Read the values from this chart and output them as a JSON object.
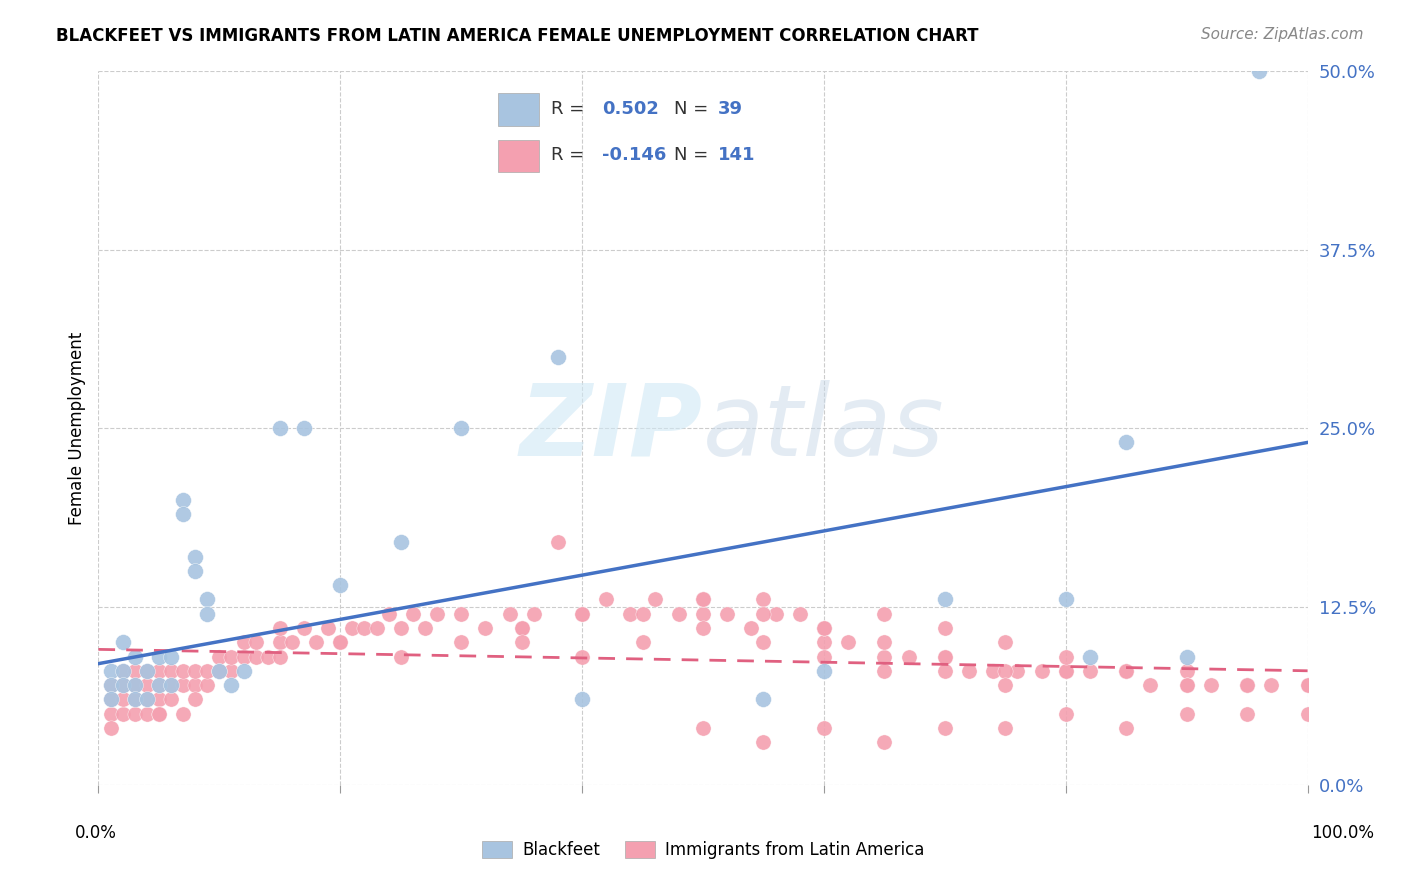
{
  "title": "BLACKFEET VS IMMIGRANTS FROM LATIN AMERICA FEMALE UNEMPLOYMENT CORRELATION CHART",
  "source": "Source: ZipAtlas.com",
  "ylabel": "Female Unemployment",
  "ytick_vals": [
    0.0,
    12.5,
    25.0,
    37.5,
    50.0
  ],
  "xlim": [
    0,
    100
  ],
  "ylim": [
    0,
    50
  ],
  "color_blackfeet": "#A8C4E0",
  "color_latin": "#F4A0B0",
  "color_line_blackfeet": "#4472C4",
  "color_line_latin": "#E06080",
  "watermark_zip": "ZIP",
  "watermark_atlas": "atlas",
  "blackfeet_x": [
    1,
    1,
    1,
    2,
    2,
    2,
    3,
    3,
    3,
    4,
    4,
    5,
    5,
    6,
    6,
    7,
    7,
    8,
    8,
    9,
    9,
    10,
    11,
    12,
    15,
    17,
    20,
    25,
    30,
    38,
    40,
    55,
    60,
    70,
    80,
    82,
    85,
    90,
    96
  ],
  "blackfeet_y": [
    8,
    7,
    6,
    10,
    8,
    7,
    9,
    7,
    6,
    8,
    6,
    9,
    7,
    9,
    7,
    20,
    19,
    16,
    15,
    13,
    12,
    8,
    7,
    8,
    25,
    25,
    14,
    17,
    25,
    30,
    6,
    6,
    8,
    13,
    13,
    9,
    24,
    9,
    50
  ],
  "latin_x": [
    1,
    1,
    1,
    1,
    2,
    2,
    2,
    2,
    3,
    3,
    3,
    3,
    4,
    4,
    4,
    4,
    5,
    5,
    5,
    5,
    6,
    6,
    6,
    7,
    7,
    7,
    8,
    8,
    8,
    9,
    9,
    10,
    10,
    11,
    11,
    12,
    12,
    13,
    13,
    14,
    15,
    15,
    16,
    17,
    18,
    19,
    20,
    21,
    22,
    23,
    24,
    25,
    26,
    27,
    28,
    30,
    32,
    34,
    35,
    36,
    38,
    40,
    42,
    44,
    46,
    48,
    50,
    50,
    52,
    54,
    56,
    58,
    60,
    60,
    62,
    65,
    67,
    70,
    72,
    74,
    76,
    78,
    80,
    82,
    85,
    87,
    90,
    92,
    95,
    97,
    100,
    35,
    40,
    45,
    50,
    55,
    60,
    65,
    70,
    75,
    80,
    85,
    90,
    95,
    5,
    10,
    15,
    20,
    25,
    30,
    35,
    40,
    45,
    50,
    55,
    60,
    65,
    70,
    75,
    50,
    55,
    60,
    65,
    70,
    75,
    80,
    85,
    90,
    95,
    100,
    50,
    55,
    60,
    65,
    70,
    75,
    80,
    85,
    90,
    95,
    100
  ],
  "latin_y": [
    5,
    4,
    6,
    7,
    5,
    6,
    7,
    8,
    6,
    7,
    8,
    5,
    5,
    6,
    7,
    8,
    6,
    7,
    5,
    8,
    7,
    8,
    6,
    5,
    7,
    8,
    7,
    6,
    8,
    7,
    8,
    8,
    9,
    8,
    9,
    9,
    10,
    9,
    10,
    9,
    10,
    11,
    10,
    11,
    10,
    11,
    10,
    11,
    11,
    11,
    12,
    11,
    12,
    11,
    12,
    12,
    11,
    12,
    11,
    12,
    17,
    12,
    13,
    12,
    13,
    12,
    13,
    12,
    12,
    11,
    12,
    12,
    11,
    10,
    10,
    9,
    9,
    9,
    8,
    8,
    8,
    8,
    8,
    8,
    8,
    7,
    8,
    7,
    7,
    7,
    7,
    11,
    12,
    12,
    13,
    13,
    11,
    10,
    9,
    8,
    8,
    8,
    7,
    7,
    5,
    8,
    9,
    10,
    9,
    10,
    10,
    9,
    10,
    11,
    10,
    9,
    8,
    8,
    7,
    13,
    12,
    11,
    12,
    11,
    10,
    9,
    8,
    7,
    7,
    7,
    4,
    3,
    4,
    3,
    4,
    4,
    5,
    4,
    5,
    5,
    5
  ],
  "line_bf_x0": 0,
  "line_bf_y0": 8.5,
  "line_bf_x1": 100,
  "line_bf_y1": 24.0,
  "line_la_x0": 0,
  "line_la_y0": 9.5,
  "line_la_x1": 100,
  "line_la_y1": 8.0,
  "grid_color": "#CCCCCC",
  "title_fontsize": 12,
  "source_fontsize": 11,
  "ytick_fontsize": 13,
  "ylabel_fontsize": 12
}
